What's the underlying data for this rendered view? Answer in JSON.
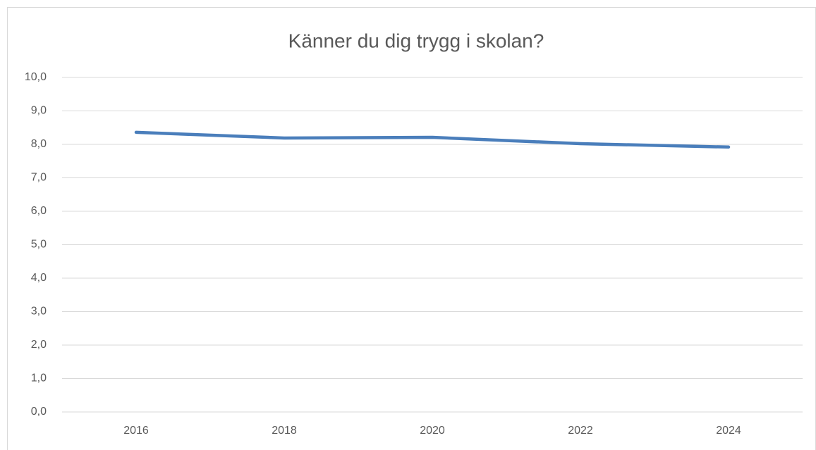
{
  "chart_data": {
    "type": "line",
    "title": "Känner du dig trygg i skolan?",
    "categories": [
      "2016",
      "2018",
      "2020",
      "2022",
      "2024"
    ],
    "series": [
      {
        "name": "Känner du dig trygg i skolan?",
        "color": "#4a7ebb",
        "values": [
          8.36,
          8.19,
          8.21,
          8.02,
          7.92
        ]
      }
    ],
    "ylim": [
      0,
      10
    ],
    "yticks": [
      {
        "value": 0,
        "label": "0,0"
      },
      {
        "value": 1,
        "label": "1,0"
      },
      {
        "value": 2,
        "label": "2,0"
      },
      {
        "value": 3,
        "label": "3,0"
      },
      {
        "value": 4,
        "label": "4,0"
      },
      {
        "value": 5,
        "label": "5,0"
      },
      {
        "value": 6,
        "label": "6,0"
      },
      {
        "value": 7,
        "label": "7,0"
      },
      {
        "value": 8,
        "label": "8,0"
      },
      {
        "value": 9,
        "label": "9,0"
      },
      {
        "value": 10,
        "label": "10,0"
      }
    ],
    "grid": true
  }
}
